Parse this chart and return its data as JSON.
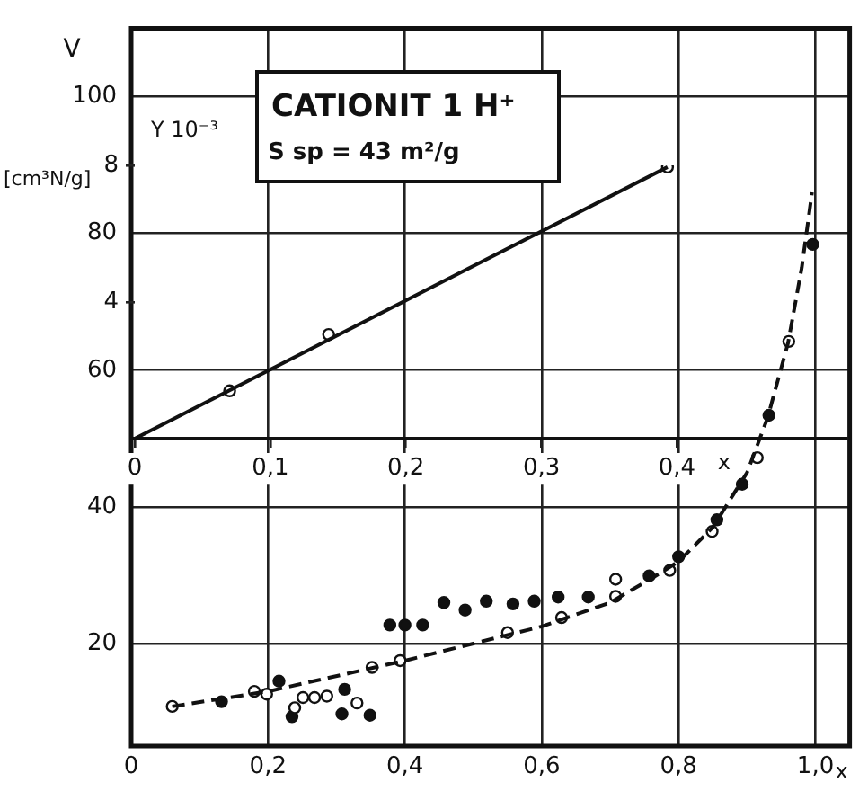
{
  "chart_data": [
    {
      "type": "scatter",
      "ylabel": "V",
      "xlabel": "x",
      "annotations": [
        "CATIONIT 1 H⁺",
        "S sp = 43 m²/g",
        "[cm³N/g]"
      ],
      "xlim": [
        0,
        1.05
      ],
      "ylim": [
        5,
        110
      ],
      "xticks": [
        0,
        {
          "value": 0.2,
          "label": "0,2"
        },
        {
          "value": 0.4,
          "label": "0,4"
        },
        {
          "value": 0.6,
          "label": "0,6"
        },
        {
          "value": 0.8,
          "label": "0,8"
        },
        {
          "value": 1.0,
          "label": "1,0"
        }
      ],
      "yticks": [
        20,
        40,
        60,
        80,
        100
      ],
      "grid": true,
      "series": [
        {
          "type": "line",
          "color": "#111111",
          "marker": "none",
          "line_style": "dashed",
          "x": [
            0.06,
            0.2,
            0.4,
            0.5,
            0.6,
            0.7,
            0.76,
            0.8,
            0.85,
            0.9,
            0.93,
            0.96,
            0.98,
            0.995
          ],
          "values": [
            10.8,
            13,
            17.5,
            20,
            22.5,
            26,
            29.5,
            32,
            37,
            45,
            53,
            64,
            75,
            86
          ]
        },
        {
          "color": "#111111",
          "marker": "circle",
          "x": [
            0.06,
            0.18,
            0.198,
            0.239,
            0.251,
            0.268,
            0.286,
            0.33,
            0.352,
            0.393,
            0.55,
            0.629,
            0.708,
            0.708,
            0.787,
            0.849,
            0.915,
            0.961
          ],
          "values": [
            10.8,
            13,
            12.6,
            10.6,
            12.1,
            12.1,
            12.3,
            11.3,
            16.5,
            17.5,
            21.6,
            23.8,
            29.4,
            26.9,
            30.7,
            36.4,
            47.2,
            64.2
          ]
        },
        {
          "color": "#111111",
          "marker": "circle",
          "x": [
            0.132,
            0.216,
            0.235,
            0.308,
            0.312,
            0.349,
            0.378,
            0.4,
            0.426,
            0.457,
            0.488,
            0.519,
            0.558,
            0.589,
            0.624,
            0.668,
            0.757,
            0.8,
            0.856,
            0.893,
            0.932,
            0.996
          ],
          "values": [
            11.5,
            14.5,
            9.3,
            9.7,
            13.3,
            9.5,
            22.7,
            22.7,
            22.7,
            26,
            24.9,
            26.2,
            25.8,
            26.2,
            26.8,
            26.8,
            29.9,
            32.7,
            38.1,
            43.3,
            53.4,
            78.4
          ]
        }
      ]
    },
    {
      "type": "line",
      "ylabel": "Y 10⁻³",
      "xlabel": "x",
      "xlim": [
        0,
        0.525
      ],
      "ylim": [
        0,
        8
      ],
      "xticks": [
        0,
        {
          "value": 0.1,
          "label": "0,1"
        },
        {
          "value": 0.2,
          "label": "0,2"
        },
        {
          "value": 0.3,
          "label": "0,3"
        },
        {
          "value": 0.4,
          "label": "0,4"
        }
      ],
      "yticks": [
        4,
        8
      ],
      "series": [
        {
          "color": "#111111",
          "marker": "none",
          "line_style": "solid",
          "x": [
            0,
            0.393
          ],
          "values": [
            0,
            7.95
          ]
        },
        {
          "type": "scatter",
          "color": "#111111",
          "marker": "circle",
          "x": [
            0.07,
            0.143,
            0.393
          ],
          "values": [
            1.4,
            3.05,
            7.95
          ]
        }
      ]
    }
  ]
}
